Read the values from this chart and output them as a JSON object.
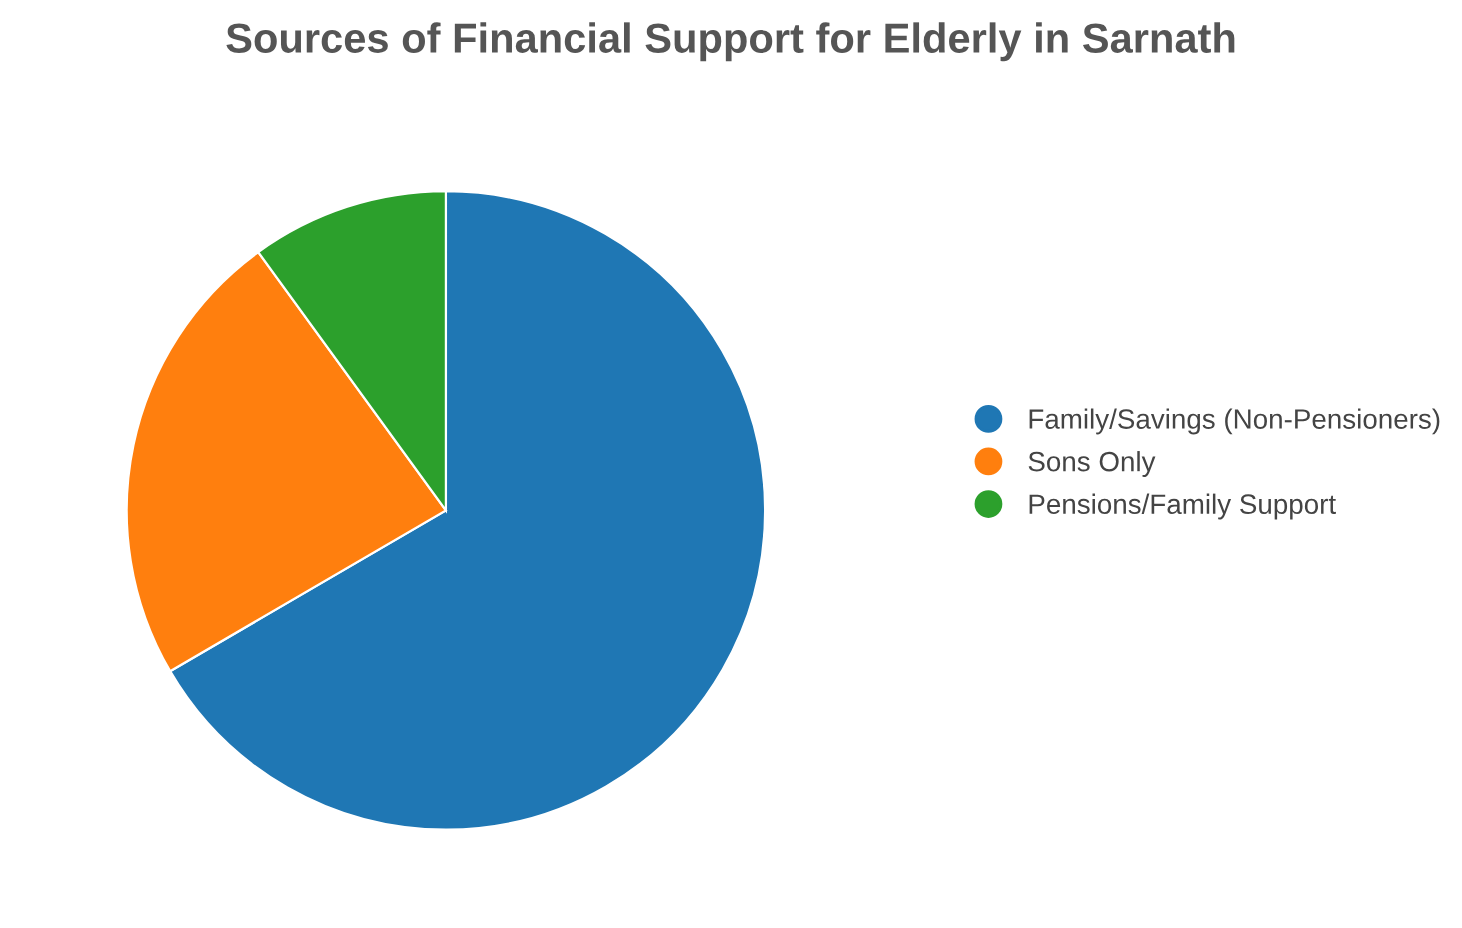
{
  "chart_data": {
    "type": "pie",
    "title": "Sources of Financial Support for Elderly in Sarnath",
    "categories": [
      "Family/Savings (Non-Pensioners)",
      "Sons Only",
      "Pensions/Family Support"
    ],
    "values": [
      66.6,
      23.4,
      10.0
    ],
    "colors": [
      "#1f77b4",
      "#ff7f0e",
      "#2ca02c"
    ],
    "legend": "right"
  }
}
